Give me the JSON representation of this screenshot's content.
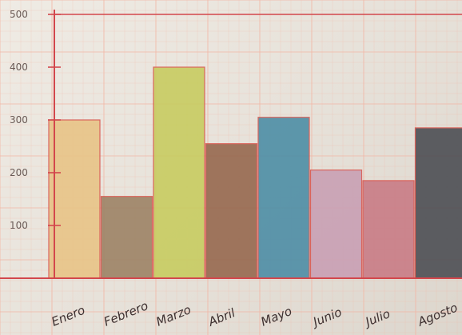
{
  "chart_data": {
    "type": "bar",
    "categories": [
      "Enero",
      "Febrero",
      "Marzo",
      "Abril",
      "Mayo",
      "Junio",
      "Julio",
      "Agosto"
    ],
    "values": [
      300,
      155,
      400,
      255,
      305,
      205,
      185,
      285
    ],
    "ylim": [
      0,
      500
    ],
    "yticks": [
      {
        "value": 100,
        "label": "100"
      },
      {
        "value": 200,
        "label": "200"
      },
      {
        "value": 300,
        "label": "300"
      },
      {
        "value": 400,
        "label": "400"
      },
      {
        "value": 500,
        "label": "500"
      }
    ],
    "bar_colors": [
      "#e8c487",
      "#9d8366",
      "#c8cc61",
      "#97694f",
      "#4e8ea6",
      "#c9a0b4",
      "#c97c86",
      "#4d4f54"
    ],
    "grid": true,
    "grid_color": "#f2b6a5",
    "axis_color": "#d3474c",
    "xlabel": "",
    "ylabel": "",
    "title": ""
  }
}
